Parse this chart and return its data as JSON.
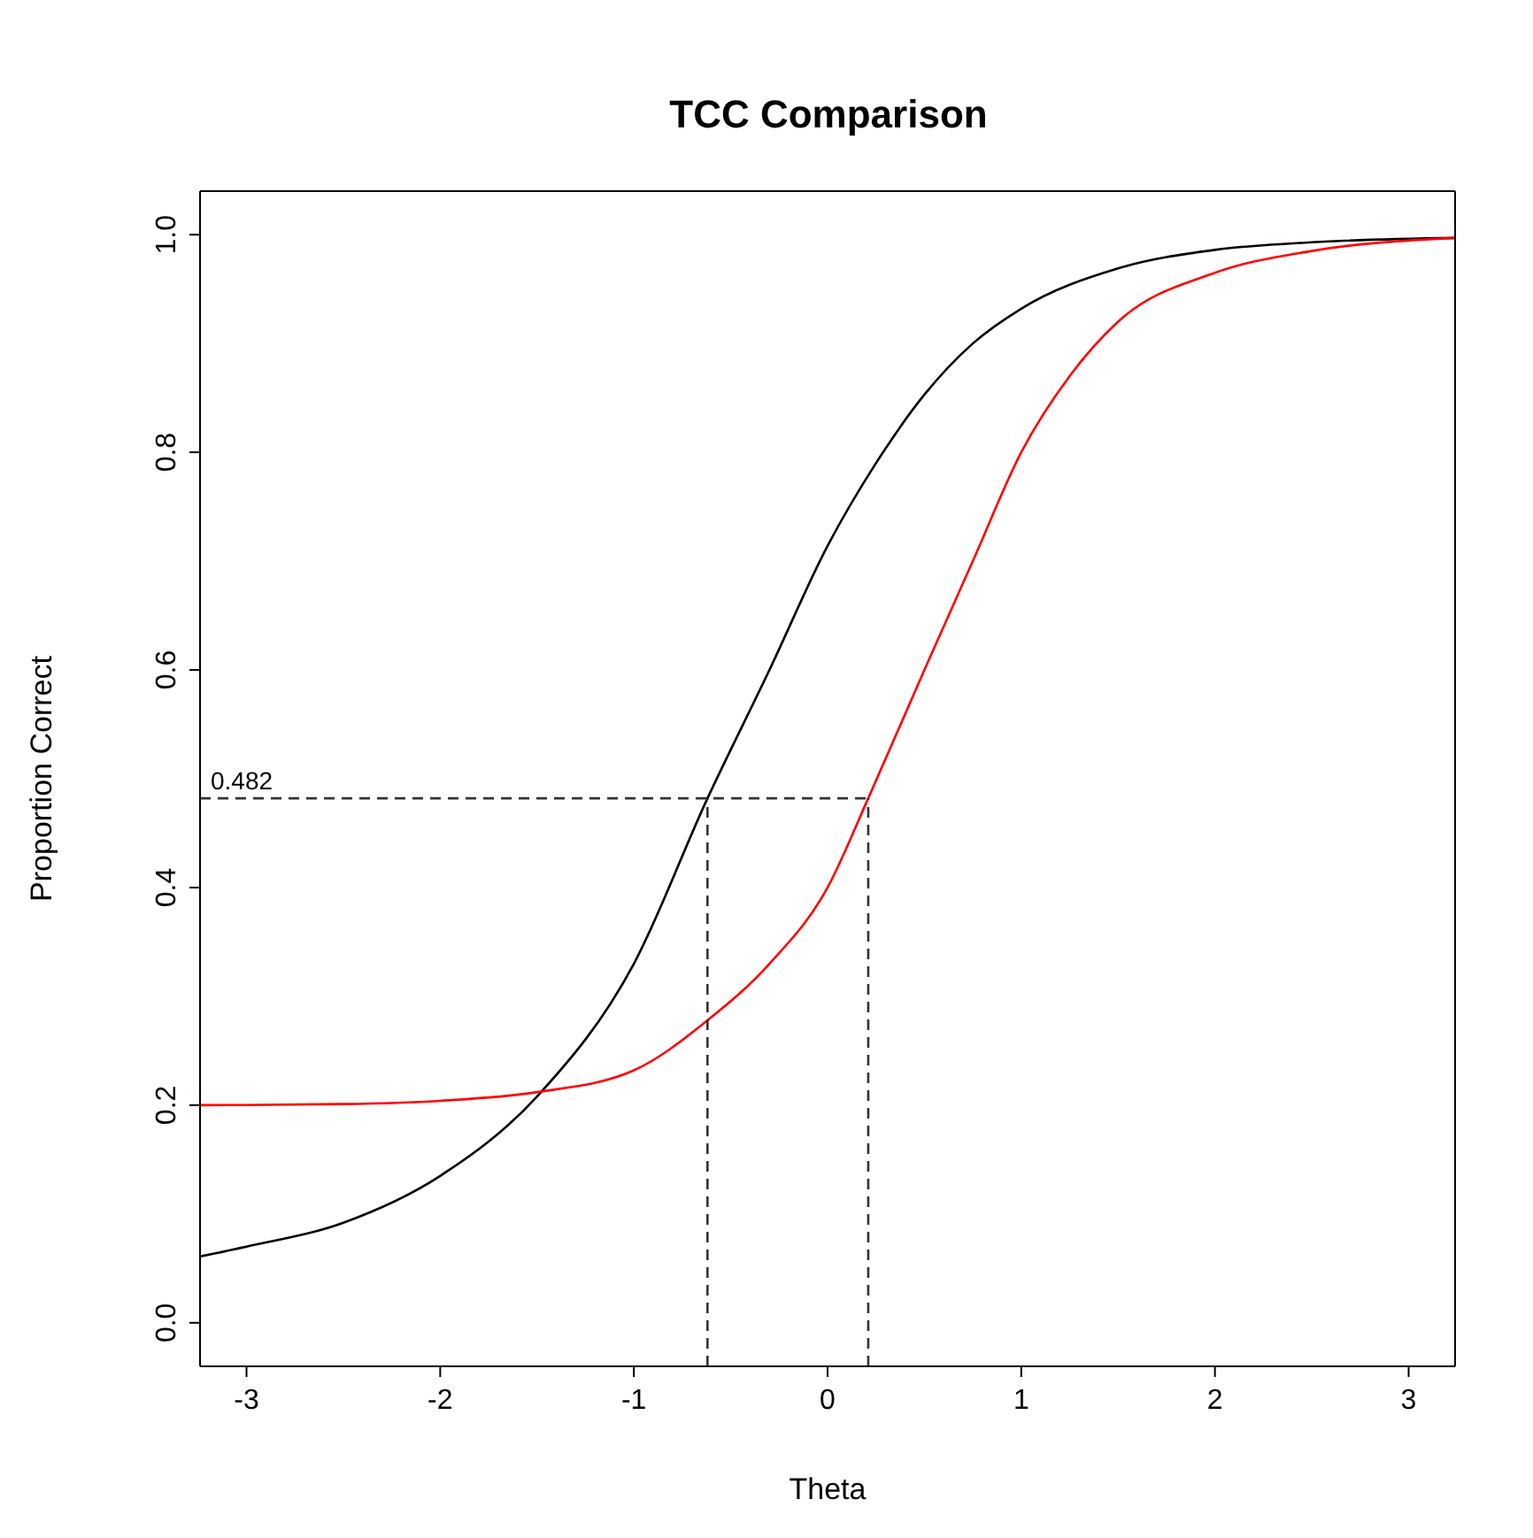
{
  "chart_data": {
    "type": "line",
    "title": "TCC Comparison",
    "xlabel": "Theta",
    "ylabel": "Proportion Correct",
    "xlim": [
      -3.24,
      3.24
    ],
    "ylim": [
      -0.04,
      1.04
    ],
    "xticks": [
      -3,
      -2,
      -1,
      0,
      1,
      2,
      3
    ],
    "yticks": [
      {
        "value": 0,
        "label": "0.0"
      },
      0.2,
      0.4,
      0.6,
      0.8,
      {
        "value": 1,
        "label": "1.0"
      }
    ],
    "marker": "none",
    "series": [
      {
        "color": "#000000",
        "line_style": "solid",
        "x": [
          -3.24,
          -3,
          -2.5,
          -2,
          -1.5,
          -1,
          -0.62,
          -0.3,
          0,
          0.25,
          0.5,
          0.75,
          1,
          1.5,
          2,
          2.5,
          3.24
        ],
        "values": [
          0.061,
          0.07,
          0.092,
          0.135,
          0.208,
          0.33,
          0.482,
          0.6,
          0.714,
          0.79,
          0.853,
          0.9,
          0.932,
          0.969,
          0.986,
          0.993,
          0.997
        ]
      },
      {
        "color": "#ff0000",
        "line_style": "solid",
        "x": [
          -3.24,
          -2.5,
          -2,
          -1.5,
          -1,
          -0.62,
          -0.3,
          0,
          0.21,
          0.5,
          0.75,
          1,
          1.25,
          1.5,
          2,
          2.5,
          3.24
        ],
        "values": [
          0.2,
          0.201,
          0.204,
          0.212,
          0.232,
          0.278,
          0.33,
          0.4,
          0.482,
          0.6,
          0.7,
          0.8,
          0.87,
          0.92,
          0.965,
          0.985,
          0.997
        ]
      },
      {
        "color": "#333333",
        "line_style": "dashed",
        "x": [
          -3.24,
          0.21
        ],
        "values": [
          0.482,
          0.482
        ]
      },
      {
        "color": "#333333",
        "line_style": "dashed",
        "x": [
          -0.62,
          -0.62
        ],
        "values": [
          -0.04,
          0.482
        ]
      },
      {
        "color": "#333333",
        "line_style": "dashed",
        "x": [
          0.21,
          0.21
        ],
        "values": [
          -0.04,
          0.482
        ]
      }
    ],
    "annotations": [
      {
        "text": "0.482",
        "x": -3.24,
        "y": 0.482
      }
    ]
  }
}
